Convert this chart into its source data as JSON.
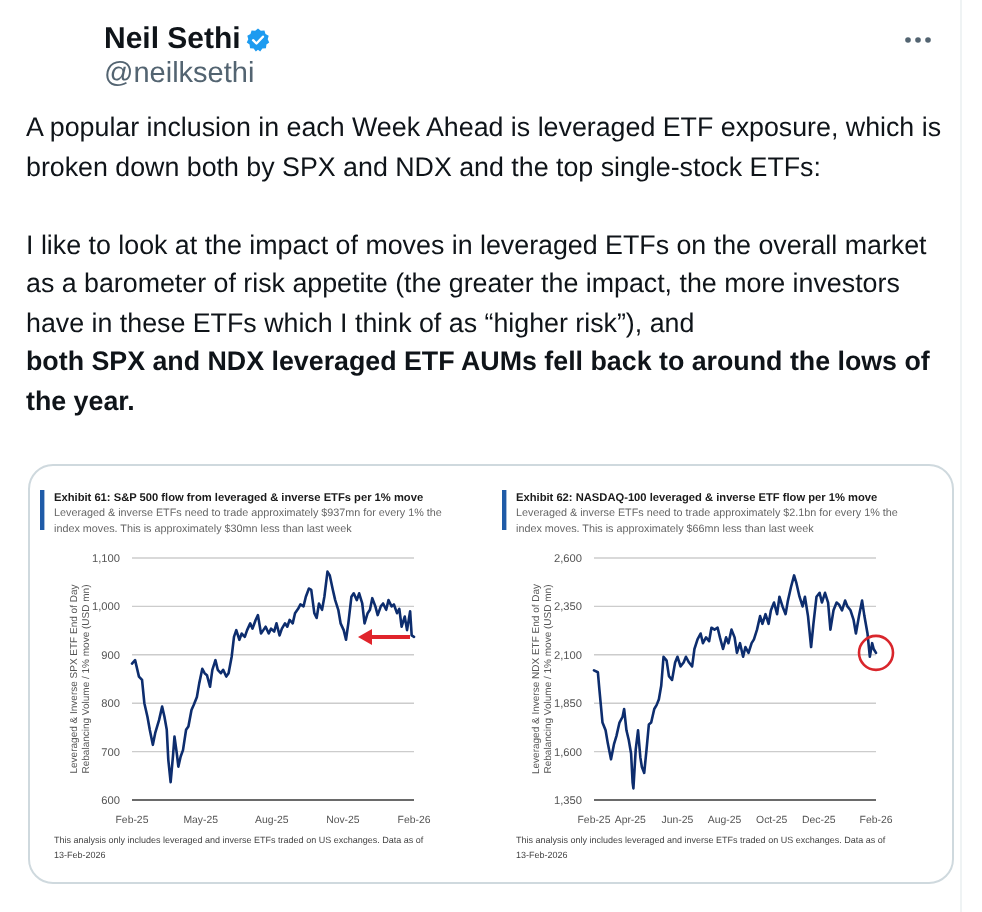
{
  "chart_data": [
    {
      "type": "line",
      "title": "Exhibit 61: S&P 500 flow from leveraged & inverse ETFs per 1% move",
      "subtitle": "Leveraged & inverse ETFs need to trade approximately $937mn for every 1% the index moves. This is approximately $30mn less than last week",
      "ylabel": "Leveraged & Inverse SPX ETF End of Day Rebalancing Volume / 1% move (USD mn)",
      "x": [
        "2025-02-13",
        "2025-02-17",
        "2025-02-22",
        "2025-02-26",
        "2025-03-01",
        "2025-03-05",
        "2025-03-08",
        "2025-03-12",
        "2025-03-15",
        "2025-03-20",
        "2025-03-24",
        "2025-03-27",
        "2025-03-30",
        "2025-04-01",
        "2025-04-04",
        "2025-04-07",
        "2025-04-09",
        "2025-04-12",
        "2025-04-14",
        "2025-04-17",
        "2025-04-20",
        "2025-04-24",
        "2025-04-27",
        "2025-05-01",
        "2025-05-04",
        "2025-05-08",
        "2025-05-11",
        "2025-05-15",
        "2025-05-18",
        "2025-05-21",
        "2025-05-25",
        "2025-05-28",
        "2025-06-01",
        "2025-06-04",
        "2025-06-08",
        "2025-06-11",
        "2025-06-15",
        "2025-06-18",
        "2025-06-22",
        "2025-06-25",
        "2025-06-28",
        "2025-07-02",
        "2025-07-05",
        "2025-07-09",
        "2025-07-12",
        "2025-07-16",
        "2025-07-19",
        "2025-07-23",
        "2025-07-26",
        "2025-07-30",
        "2025-08-02",
        "2025-08-05",
        "2025-08-09",
        "2025-08-12",
        "2025-08-16",
        "2025-08-19",
        "2025-08-23",
        "2025-08-26",
        "2025-08-30",
        "2025-09-02",
        "2025-09-05",
        "2025-09-09",
        "2025-09-12",
        "2025-09-16",
        "2025-09-19",
        "2025-09-23",
        "2025-09-26",
        "2025-09-30",
        "2025-10-03",
        "2025-10-07",
        "2025-10-10",
        "2025-10-13",
        "2025-10-17",
        "2025-10-20",
        "2025-10-24",
        "2025-10-27",
        "2025-10-31",
        "2025-11-03",
        "2025-11-07",
        "2025-11-10",
        "2025-11-14",
        "2025-11-17",
        "2025-11-20",
        "2025-11-24",
        "2025-11-27",
        "2025-12-01",
        "2025-12-04",
        "2025-12-08",
        "2025-12-11",
        "2025-12-15",
        "2025-12-18",
        "2025-12-21",
        "2025-12-25",
        "2025-12-28",
        "2026-01-01",
        "2026-01-04",
        "2026-01-08",
        "2026-01-11",
        "2026-01-15",
        "2026-01-18",
        "2026-01-22",
        "2026-01-25",
        "2026-01-28",
        "2026-02-01",
        "2026-02-04",
        "2026-02-08",
        "2026-02-10",
        "2026-02-13"
      ],
      "xlim": [
        "2025-02-13",
        "2026-02-13"
      ],
      "xticks": [
        {
          "value": "2025-02-13",
          "label": "Feb-25"
        },
        {
          "value": "2025-05-13",
          "label": "May-25"
        },
        {
          "value": "2025-08-13",
          "label": "Aug-25"
        },
        {
          "value": "2025-11-13",
          "label": "Nov-25"
        },
        {
          "value": "2026-02-13",
          "label": "Feb-26"
        }
      ],
      "ylim": [
        600,
        1100
      ],
      "yticks": [
        600,
        700,
        800,
        900,
        {
          "value": 1000,
          "label": "1,000"
        },
        {
          "value": 1100,
          "label": "1,100"
        }
      ],
      "grid": "y",
      "series": [
        {
          "color": "#0d2d6e",
          "values": [
            882,
            889,
            855,
            848,
            800,
            772,
            745,
            714,
            738,
            765,
            793,
            772,
            745,
            683,
            637,
            690,
            731,
            696,
            669,
            690,
            703,
            745,
            752,
            786,
            797,
            813,
            841,
            871,
            862,
            858,
            834,
            869,
            889,
            869,
            862,
            869,
            855,
            862,
            896,
            937,
            951,
            931,
            944,
            937,
            951,
            965,
            954,
            972,
            982,
            944,
            951,
            958,
            944,
            954,
            948,
            965,
            940,
            954,
            965,
            958,
            972,
            965,
            986,
            995,
            1004,
            1000,
            1020,
            1037,
            1034,
            986,
            976,
            1006,
            993,
            1020,
            1072,
            1064,
            1034,
            1013,
            993,
            965,
            951,
            931,
            965,
            1020,
            1027,
            1013,
            1027,
            1006,
            965,
            986,
            993,
            1017,
            1000,
            982,
            1000,
            1006,
            993,
            1013,
            1000,
            1004,
            986,
            995,
            958,
            979,
            951,
            990,
            940,
            937
          ]
        }
      ],
      "annotations": [
        "Neil Sethi",
        "@neilksethi",
        "A popular inclusion in each Week Ahead is leveraged ETF exposure, which is broken down both by SPX and NDX and the top single-stock ETFs:",
        "I like to look at the impact of moves in leveraged ETFs on the overall market as a barometer of risk appetite (the greater the impact, the more investors have in these ETFs which I think of as “higher risk”), and",
        "both SPX and NDX leveraged ETF AUMs fell back to around the lows of the year.",
        "This analysis only includes leveraged and inverse ETFs traded on US exchanges. Data as of 13-Feb-2026"
      ]
    },
    {
      "type": "line",
      "title": "Exhibit 62: NASDAQ-100 leveraged & inverse ETF flow per 1% move",
      "subtitle": "Leveraged & inverse ETFs need to trade approximately $2.1bn for every 1% the index moves. This is approximately $66mn less than last week",
      "ylabel": "Leveraged & Inverse NDX ETF End of Day Rebalancing Volume / 1% move (USD mn)",
      "x": [
        "2025-02-13",
        "2025-02-18",
        "2025-02-20",
        "2025-02-24",
        "2025-02-28",
        "2025-03-03",
        "2025-03-07",
        "2025-03-11",
        "2025-03-14",
        "2025-03-18",
        "2025-03-22",
        "2025-03-24",
        "2025-03-27",
        "2025-03-30",
        "2025-04-02",
        "2025-04-04",
        "2025-04-05",
        "2025-04-08",
        "2025-04-11",
        "2025-04-14",
        "2025-04-16",
        "2025-04-19",
        "2025-04-22",
        "2025-04-25",
        "2025-04-28",
        "2025-05-02",
        "2025-05-05",
        "2025-05-08",
        "2025-05-11",
        "2025-05-14",
        "2025-05-18",
        "2025-05-21",
        "2025-05-25",
        "2025-05-29",
        "2025-06-01",
        "2025-06-05",
        "2025-06-09",
        "2025-06-12",
        "2025-06-16",
        "2025-06-20",
        "2025-06-23",
        "2025-06-27",
        "2025-07-01",
        "2025-07-04",
        "2025-07-08",
        "2025-07-12",
        "2025-07-15",
        "2025-07-19",
        "2025-07-23",
        "2025-07-26",
        "2025-07-30",
        "2025-08-03",
        "2025-08-06",
        "2025-08-10",
        "2025-08-14",
        "2025-08-17",
        "2025-08-21",
        "2025-08-25",
        "2025-08-28",
        "2025-09-01",
        "2025-09-05",
        "2025-09-08",
        "2025-09-12",
        "2025-09-16",
        "2025-09-19",
        "2025-09-23",
        "2025-09-27",
        "2025-09-30",
        "2025-10-04",
        "2025-10-08",
        "2025-10-11",
        "2025-10-15",
        "2025-10-19",
        "2025-10-22",
        "2025-10-26",
        "2025-10-30",
        "2025-11-02",
        "2025-11-06",
        "2025-11-10",
        "2025-11-13",
        "2025-11-17",
        "2025-11-21",
        "2025-11-24",
        "2025-11-28",
        "2025-12-02",
        "2025-12-05",
        "2025-12-09",
        "2025-12-13",
        "2025-12-16",
        "2025-12-20",
        "2025-12-24",
        "2025-12-27",
        "2025-12-31",
        "2026-01-04",
        "2026-01-07",
        "2026-01-11",
        "2026-01-15",
        "2026-01-18",
        "2026-01-22",
        "2026-01-26",
        "2026-01-29",
        "2026-02-02",
        "2026-02-05",
        "2026-02-08",
        "2026-02-10",
        "2026-02-13"
      ],
      "xlim": [
        "2025-02-13",
        "2026-02-13"
      ],
      "xticks": [
        {
          "value": "2025-02-13",
          "label": "Feb-25"
        },
        {
          "value": "2025-04-01",
          "label": "Apr-25"
        },
        {
          "value": "2025-06-01",
          "label": "Jun-25"
        },
        {
          "value": "2025-08-01",
          "label": "Aug-25"
        },
        {
          "value": "2025-10-01",
          "label": "Oct-25"
        },
        {
          "value": "2025-12-01",
          "label": "Dec-25"
        },
        {
          "value": "2026-02-13",
          "label": "Feb-26"
        }
      ],
      "ylim": [
        1350,
        2600
      ],
      "yticks": [
        {
          "value": 1350,
          "label": "1,350"
        },
        {
          "value": 1600,
          "label": "1,600"
        },
        {
          "value": 1850,
          "label": "1,850"
        },
        {
          "value": 2100,
          "label": "2,100"
        },
        {
          "value": 2350,
          "label": "2,350"
        },
        {
          "value": 2600,
          "label": "2,600"
        }
      ],
      "grid": "y",
      "series": [
        {
          "color": "#0d2d6e",
          "values": [
            2020,
            2010,
            1920,
            1750,
            1710,
            1640,
            1560,
            1640,
            1680,
            1750,
            1780,
            1820,
            1710,
            1660,
            1590,
            1440,
            1410,
            1610,
            1710,
            1570,
            1520,
            1490,
            1610,
            1740,
            1750,
            1820,
            1840,
            1870,
            1940,
            2090,
            2070,
            1990,
            1970,
            2060,
            2090,
            2040,
            2060,
            2090,
            2060,
            2040,
            2130,
            2180,
            2210,
            2160,
            2190,
            2170,
            2240,
            2230,
            2240,
            2190,
            2130,
            2190,
            2160,
            2230,
            2190,
            2110,
            2160,
            2090,
            2140,
            2110,
            2160,
            2180,
            2230,
            2300,
            2260,
            2310,
            2260,
            2330,
            2370,
            2310,
            2400,
            2350,
            2310,
            2380,
            2450,
            2510,
            2470,
            2400,
            2350,
            2400,
            2300,
            2140,
            2260,
            2400,
            2420,
            2370,
            2420,
            2370,
            2230,
            2330,
            2370,
            2360,
            2330,
            2380,
            2350,
            2330,
            2280,
            2210,
            2300,
            2380,
            2300,
            2210,
            2090,
            2160,
            2130,
            2110
          ]
        }
      ],
      "annotations": [
        "This analysis only includes leveraged and inverse ETFs traded on US exchanges. Data as of 13-Feb-2026"
      ]
    }
  ]
}
